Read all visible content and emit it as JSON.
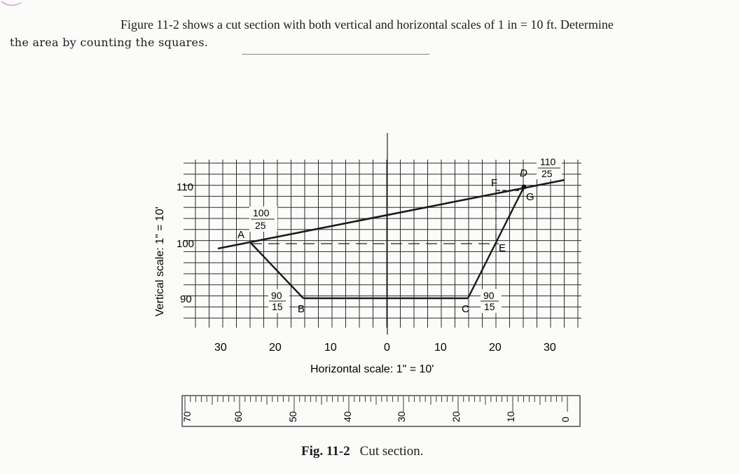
{
  "problem": {
    "line1": "Figure 11-2 shows a cut section with both vertical and horizontal scales of 1 in = 10 ft. Determine",
    "line2": "the area by counting the squares."
  },
  "figure": {
    "vertical_scale_label": "Vertical scale: 1\" = 10'",
    "horizontal_scale_label": "Horizontal scale: 1\" = 10'",
    "elevation_labels": [
      "110",
      "100",
      "90"
    ],
    "offset_labels": [
      "30",
      "20",
      "10",
      "0",
      "10",
      "20",
      "30"
    ],
    "points": {
      "A": "A",
      "B": "B",
      "C": "C",
      "D": "D",
      "E": "E",
      "F": "F",
      "G": "G"
    },
    "notes": {
      "A": {
        "top": "100",
        "bottom": "25"
      },
      "B": {
        "top": "90",
        "bottom": "15"
      },
      "C": {
        "top": "90",
        "bottom": "15"
      },
      "D": {
        "top": "110",
        "bottom": "25"
      }
    },
    "ruler_labels": [
      "70",
      "60",
      "50",
      "40",
      "30",
      "20",
      "10",
      "0"
    ]
  },
  "caption": {
    "number": "Fig. 11-2",
    "text": "Cut section."
  }
}
